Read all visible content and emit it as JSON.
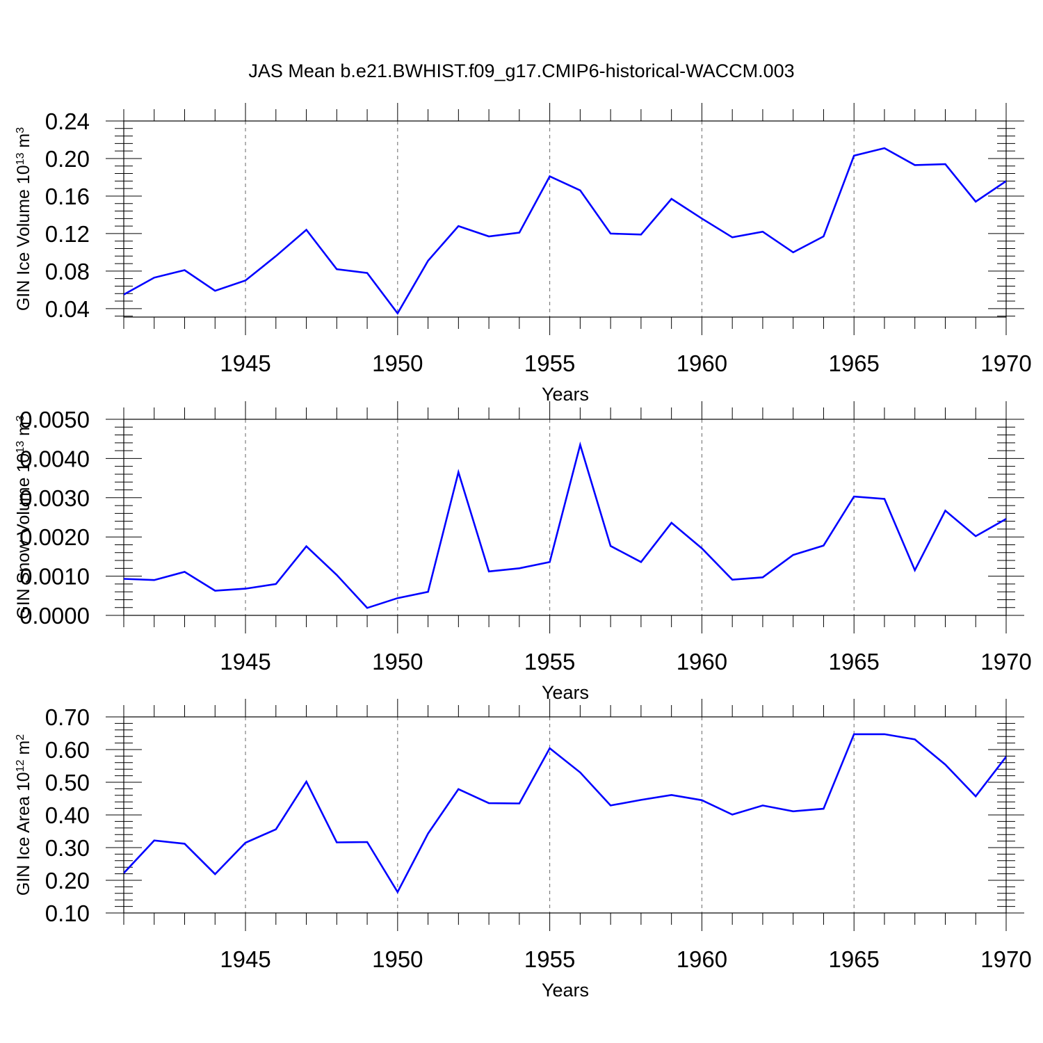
{
  "title": "JAS Mean b.e21.BWHIST.f09_g17.CMIP6-historical-WACCM.003",
  "colors": {
    "line": "#0000ff",
    "axes": "#000000",
    "grid": "#666666"
  },
  "chart_data": [
    {
      "type": "line",
      "xlabel": "Years",
      "ylabel": {
        "text": "GIN Ice Volume 10",
        "sup": "13",
        "unit": " m",
        "unit_sup": "3"
      },
      "xlim": [
        1941,
        1970
      ],
      "ylim": [
        0.031,
        0.24
      ],
      "xticks": [
        1945,
        1950,
        1955,
        1960,
        1965,
        1970
      ],
      "yticks": [
        0.04,
        0.08,
        0.12,
        0.16,
        0.2,
        0.24
      ],
      "ytick_labels": [
        "0.04",
        "0.08",
        "0.12",
        "0.16",
        "0.20",
        "0.24"
      ],
      "grid": "vertical dashed at major x ticks",
      "x": [
        1941,
        1942,
        1943,
        1944,
        1945,
        1946,
        1947,
        1948,
        1949,
        1950,
        1951,
        1952,
        1953,
        1954,
        1955,
        1956,
        1957,
        1958,
        1959,
        1960,
        1961,
        1962,
        1963,
        1964,
        1965,
        1966,
        1967,
        1968,
        1969,
        1970
      ],
      "values": [
        0.055,
        0.073,
        0.081,
        0.059,
        0.07,
        0.096,
        0.124,
        0.082,
        0.078,
        0.035,
        0.091,
        0.128,
        0.117,
        0.121,
        0.181,
        0.166,
        0.12,
        0.119,
        0.157,
        0.136,
        0.116,
        0.122,
        0.1,
        0.117,
        0.203,
        0.211,
        0.193,
        0.194,
        0.154,
        0.176
      ]
    },
    {
      "type": "line",
      "xlabel": "Years",
      "ylabel": {
        "text": "GIN Snow Volume 10",
        "sup": "13",
        "unit": " m",
        "unit_sup": "3"
      },
      "xlim": [
        1941,
        1970
      ],
      "ylim": [
        0,
        0.005
      ],
      "xticks": [
        1945,
        1950,
        1955,
        1960,
        1965,
        1970
      ],
      "yticks": [
        0,
        0.001,
        0.002,
        0.003,
        0.004,
        0.005
      ],
      "ytick_labels": [
        "0.0000",
        "0.0010",
        "0.0020",
        "0.0030",
        "0.0040",
        "0.0050"
      ],
      "grid": "vertical dashed at major x ticks",
      "x": [
        1941,
        1942,
        1943,
        1944,
        1945,
        1946,
        1947,
        1948,
        1949,
        1950,
        1951,
        1952,
        1953,
        1954,
        1955,
        1956,
        1957,
        1958,
        1959,
        1960,
        1961,
        1962,
        1963,
        1964,
        1965,
        1966,
        1967,
        1968,
        1969,
        1970
      ],
      "values": [
        0.00093,
        0.0009,
        0.00111,
        0.00063,
        0.00068,
        0.0008,
        0.00176,
        0.00103,
        0.00019,
        0.00044,
        0.0006,
        0.00365,
        0.00112,
        0.0012,
        0.00136,
        0.00435,
        0.00177,
        0.00136,
        0.00236,
        0.00171,
        0.00091,
        0.00097,
        0.00154,
        0.00178,
        0.00303,
        0.00297,
        0.00115,
        0.00267,
        0.00202,
        0.00246
      ]
    },
    {
      "type": "line",
      "xlabel": "Years",
      "ylabel": {
        "text": "GIN Ice Area 10",
        "sup": "12",
        "unit": " m",
        "unit_sup": "2"
      },
      "xlim": [
        1941,
        1970
      ],
      "ylim": [
        0.1,
        0.7
      ],
      "xticks": [
        1945,
        1950,
        1955,
        1960,
        1965,
        1970
      ],
      "yticks": [
        0.1,
        0.2,
        0.3,
        0.4,
        0.5,
        0.6,
        0.7
      ],
      "ytick_labels": [
        "0.10",
        "0.20",
        "0.30",
        "0.40",
        "0.50",
        "0.60",
        "0.70"
      ],
      "grid": "vertical dashed at major x ticks",
      "x": [
        1941,
        1942,
        1943,
        1944,
        1945,
        1946,
        1947,
        1948,
        1949,
        1950,
        1951,
        1952,
        1953,
        1954,
        1955,
        1956,
        1957,
        1958,
        1959,
        1960,
        1961,
        1962,
        1963,
        1964,
        1965,
        1966,
        1967,
        1968,
        1969,
        1970
      ],
      "values": [
        0.222,
        0.322,
        0.312,
        0.219,
        0.315,
        0.356,
        0.502,
        0.316,
        0.317,
        0.164,
        0.343,
        0.479,
        0.436,
        0.435,
        0.604,
        0.53,
        0.429,
        0.446,
        0.461,
        0.445,
        0.401,
        0.429,
        0.411,
        0.419,
        0.647,
        0.647,
        0.631,
        0.554,
        0.457,
        0.578
      ]
    }
  ]
}
